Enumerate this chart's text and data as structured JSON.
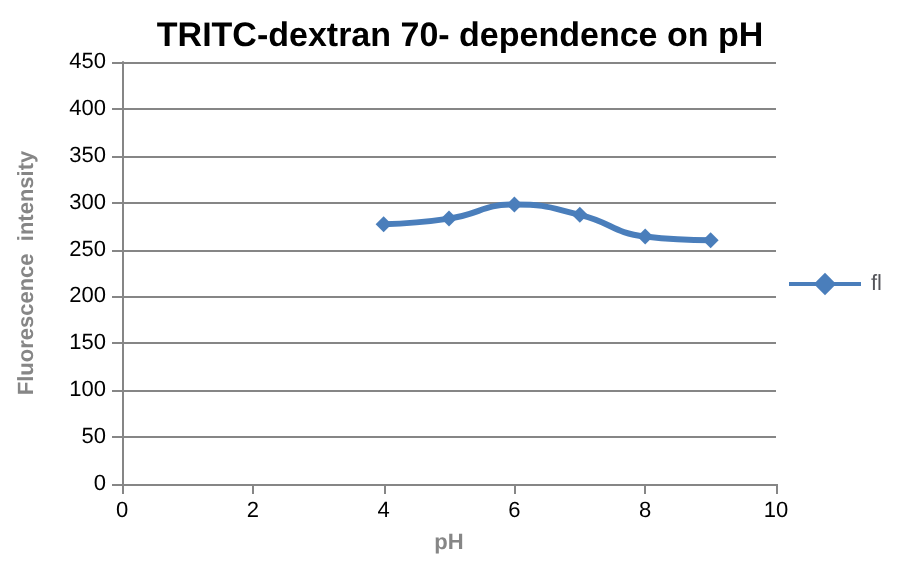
{
  "chart_data": {
    "type": "line",
    "title": "TRITC-dextran 70- dependence on pH",
    "xlabel": "pH",
    "ylabel": "Fluorescence  intensity",
    "x": [
      4,
      5,
      6,
      7,
      8,
      9
    ],
    "series": [
      {
        "name": "fl",
        "color": "#4a7ebb",
        "values": [
          277,
          283,
          298,
          287,
          264,
          260
        ]
      }
    ],
    "xlim": [
      0,
      10
    ],
    "xticks": [
      0,
      2,
      4,
      6,
      8,
      10
    ],
    "ylim": [
      0,
      450
    ],
    "yticks": [
      0,
      50,
      100,
      150,
      200,
      250,
      300,
      350,
      400,
      450
    ],
    "grid": "y",
    "legend": "right",
    "marker": "diamond",
    "line_style": "solid"
  }
}
